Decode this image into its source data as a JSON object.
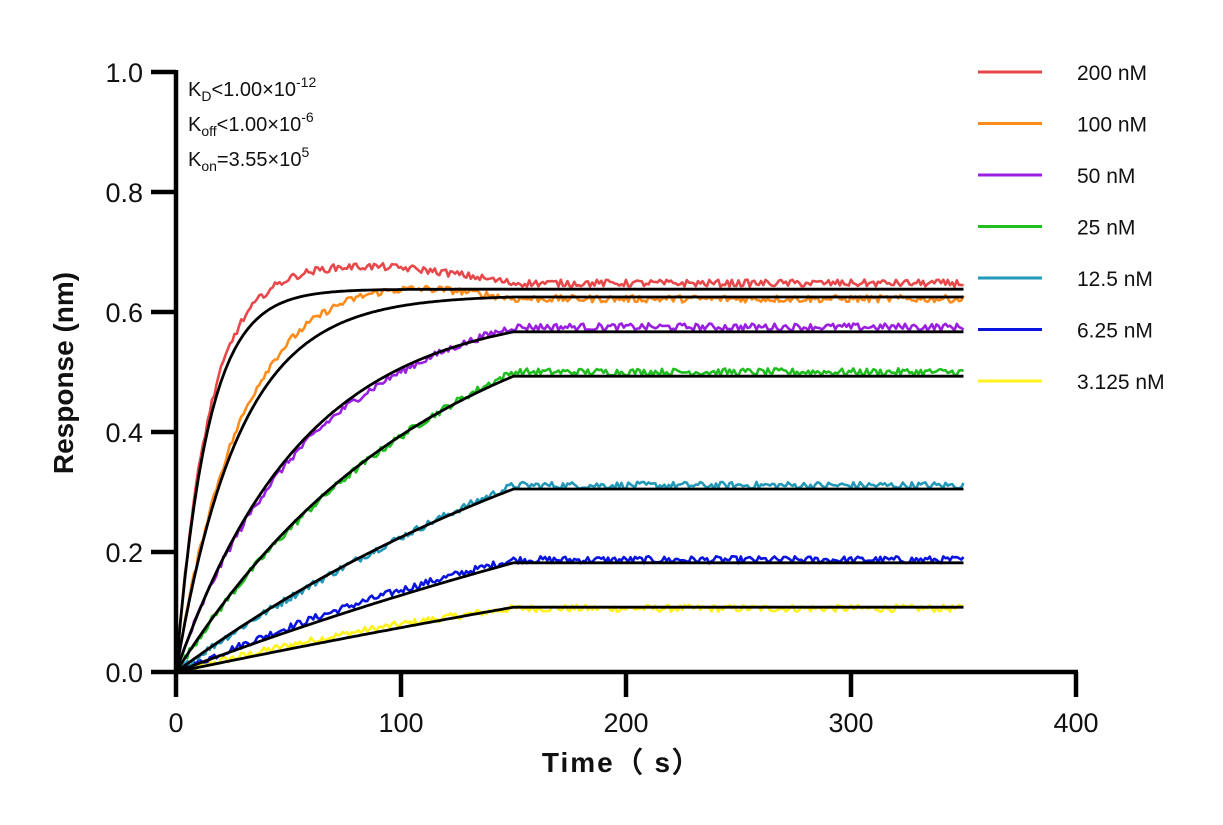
{
  "chart_data": {
    "type": "line",
    "title": "",
    "xlabel": "Time（ s）",
    "ylabel": "Response (nm)",
    "xlim": [
      0,
      400
    ],
    "ylim": [
      0,
      1.0
    ],
    "xticks": [
      "0",
      "100",
      "200",
      "300",
      "400"
    ],
    "xtick_values": [
      0,
      100,
      200,
      300,
      400
    ],
    "yticks": [
      "0.0",
      "0.2",
      "0.4",
      "0.6",
      "0.8",
      "1.0"
    ],
    "ytick_values": [
      0,
      0.2,
      0.4,
      0.6,
      0.8,
      1.0
    ],
    "grid": false,
    "legend_position": "top-right",
    "association_end": 150,
    "experiment_end": 350,
    "fit_color": "#000000",
    "annotations": {
      "kd": {
        "main": "K",
        "sub": "D",
        "rel": "<1.00×10",
        "exp": "-12"
      },
      "koff": {
        "main": "K",
        "sub": "off",
        "rel": "<1.00×10",
        "exp": "-6"
      },
      "kon": {
        "main": "K",
        "sub": "on",
        "rel": "=3.55×10",
        "exp": "5"
      }
    },
    "series": [
      {
        "name": "200 nM",
        "color": "#E8484A",
        "kobs": 0.071,
        "fit_plateau": 0.638,
        "data_plateau": 0.648,
        "data_lead": 0.03
      },
      {
        "name": "100 nM",
        "color": "#FF8C1A",
        "kobs": 0.0355,
        "fit_plateau": 0.625,
        "data_plateau": 0.622,
        "data_lead": 0.035
      },
      {
        "name": "50 nM",
        "color": "#9B1FE0",
        "kobs": 0.0178,
        "fit_plateau": 0.567,
        "data_plateau": 0.575,
        "data_lead": -0.015
      },
      {
        "name": "25 nM",
        "color": "#1FBF1F",
        "kobs": 0.0089,
        "fit_plateau": 0.493,
        "data_plateau": 0.5,
        "data_lead": -0.008
      },
      {
        "name": "12.5 nM",
        "color": "#2299B8",
        "kobs": 0.0044,
        "fit_plateau": 0.305,
        "data_plateau": 0.311,
        "data_lead": -0.005
      },
      {
        "name": "6.25 nM",
        "color": "#0A14E0",
        "kobs": 0.0022,
        "fit_plateau": 0.182,
        "data_plateau": 0.187,
        "data_lead": 0.006
      },
      {
        "name": "3.125 nM",
        "color": "#FFF21A",
        "kobs": 0.0011,
        "fit_plateau": 0.108,
        "data_plateau": 0.106,
        "data_lead": 0.008
      }
    ]
  }
}
